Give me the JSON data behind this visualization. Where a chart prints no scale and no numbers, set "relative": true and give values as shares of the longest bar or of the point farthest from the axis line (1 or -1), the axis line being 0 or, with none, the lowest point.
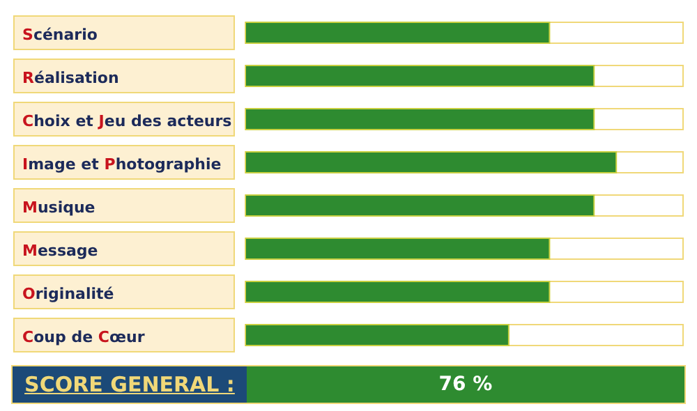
{
  "chart_data": {
    "type": "bar",
    "orientation": "horizontal",
    "relative": true,
    "categories": [
      "Scénario",
      "Réalisation",
      "Choix et Jeu des acteurs",
      "Image et Photographie",
      "Musique",
      "Message",
      "Originalité",
      "Coup de Cœur"
    ],
    "values": [
      0.82,
      0.94,
      0.94,
      1,
      0.94,
      0.82,
      0.82,
      0.71
    ],
    "color": "#2e8b30",
    "annotations": [
      "SCORE GENERAL :",
      "76 %"
    ]
  }
}
